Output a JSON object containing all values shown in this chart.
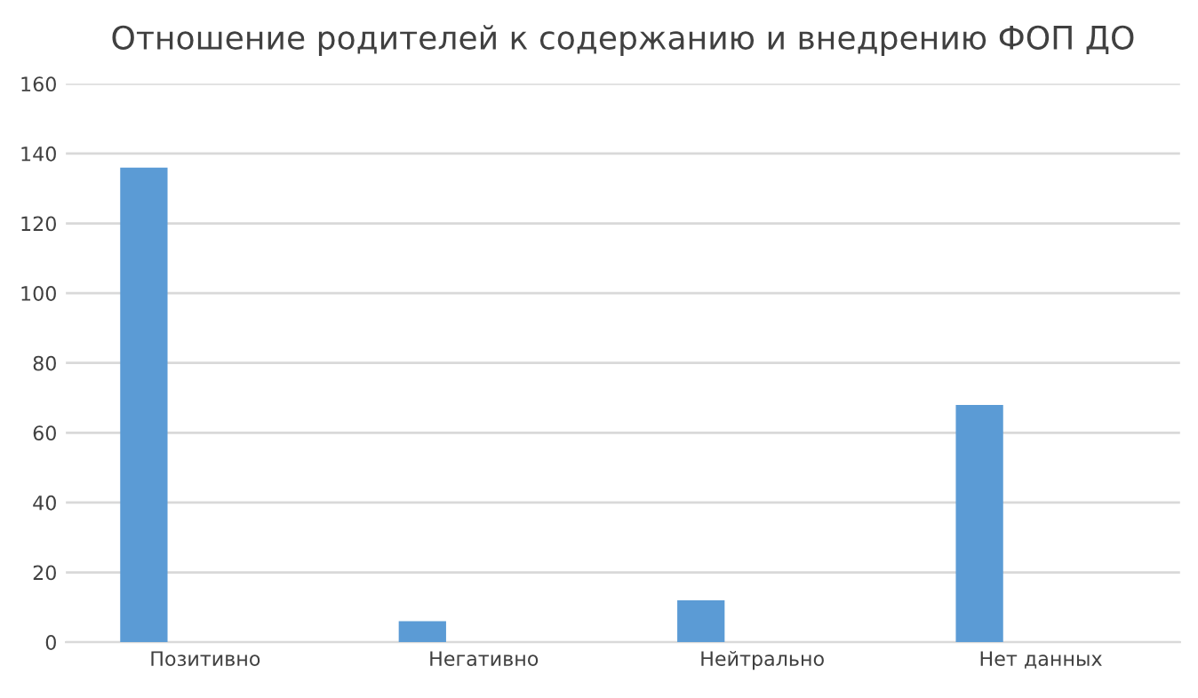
{
  "chart_data": {
    "type": "bar",
    "title": "Отношение родителей к содержанию и внедрению ФОП ДО",
    "categories": [
      "Позитивно",
      "Негативно",
      "Нейтрально",
      "Нет данных"
    ],
    "values": [
      136,
      6,
      12,
      68
    ],
    "color": "#5b9bd5",
    "ylim": [
      0,
      160
    ],
    "yticks": [
      0,
      20,
      40,
      60,
      80,
      100,
      120,
      140,
      160
    ],
    "grid": "y"
  }
}
